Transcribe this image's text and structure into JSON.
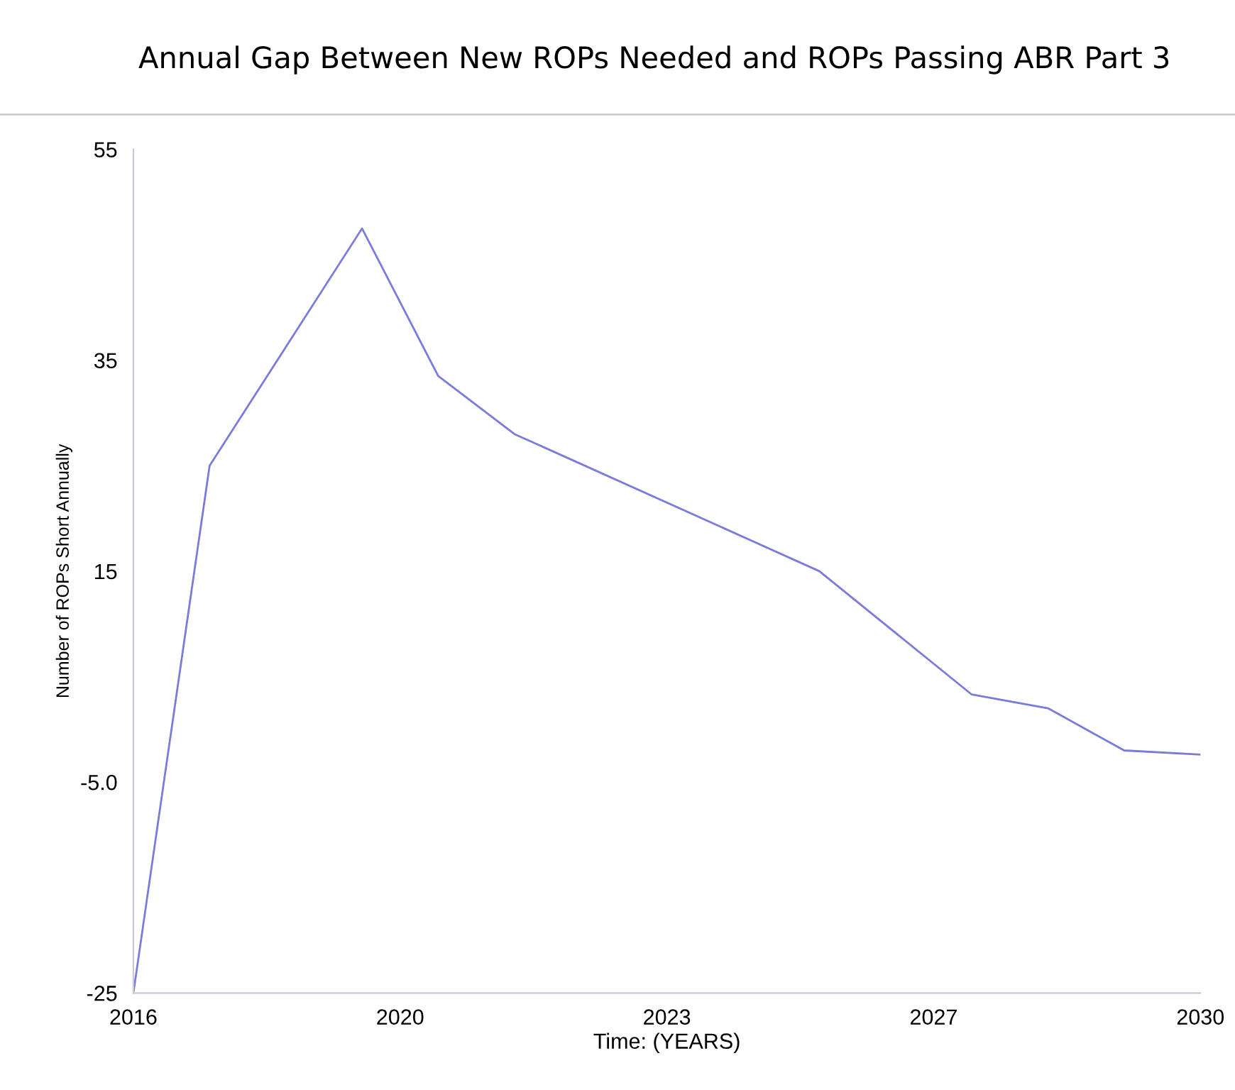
{
  "chart_data": {
    "type": "line",
    "title": "Annual Gap Between New ROPs Needed and ROPs Passing ABR Part 3",
    "xlabel": "Time: (YEARS)",
    "ylabel": "Number of ROPs Short Annually",
    "x": [
      2016,
      2017,
      2019,
      2020,
      2021,
      2025,
      2027,
      2028,
      2029,
      2030
    ],
    "series": [
      {
        "color": "#7b7bdb",
        "values": [
          -25,
          25,
          47.5,
          33.5,
          28,
          15,
          3.3,
          2,
          -2,
          -2.4
        ]
      }
    ],
    "xlim": [
      2016,
      2030
    ],
    "xticks": [
      2016,
      {
        "value": 2019.5,
        "label": "2020"
      },
      2023,
      {
        "value": 2026.5,
        "label": "2027"
      },
      2030
    ],
    "ylim": [
      -25,
      55
    ],
    "yticks": [
      -25,
      {
        "value": -5,
        "label": "-5.0"
      },
      15,
      35,
      55
    ],
    "grid": false,
    "legend": false,
    "marker": "none",
    "line_style": "solid"
  }
}
